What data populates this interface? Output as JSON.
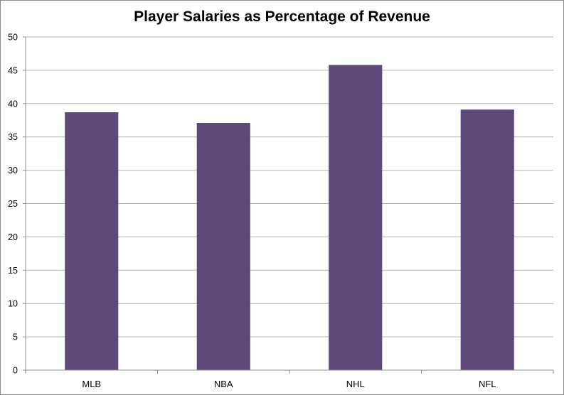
{
  "chart_data": {
    "type": "bar",
    "title": "Player Salaries as Percentage of Revenue",
    "xlabel": "",
    "ylabel": "",
    "categories": [
      "MLB",
      "NBA",
      "NHL",
      "NFL"
    ],
    "values": [
      38.7,
      37.1,
      45.8,
      39.1
    ],
    "ylim": [
      0,
      50
    ],
    "yticks": [
      "0",
      "5",
      "10",
      "15",
      "20",
      "25",
      "30",
      "35",
      "40",
      "45",
      "50"
    ],
    "grid": true,
    "legend": "none",
    "bar_color": "#5e4a7a"
  }
}
